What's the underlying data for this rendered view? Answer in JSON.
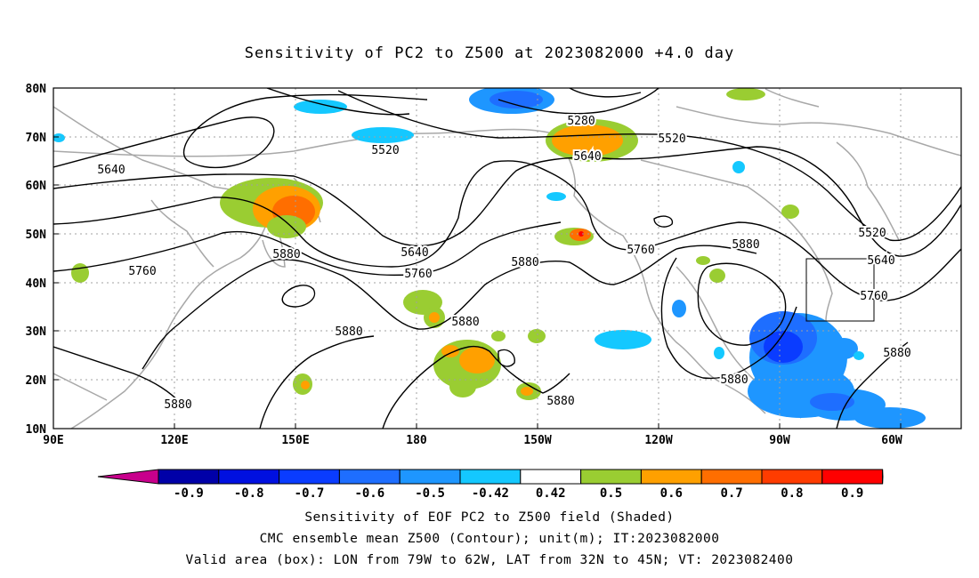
{
  "title": "Sensitivity of PC2 to Z500 at 2023082000 +4.0 day",
  "map": {
    "lat_ticks": [
      "80N",
      "70N",
      "60N",
      "50N",
      "40N",
      "30N",
      "20N",
      "10N"
    ],
    "lon_ticks": [
      "90E",
      "120E",
      "150E",
      "180",
      "150W",
      "120W",
      "90W",
      "60W"
    ],
    "contour_labels": [
      {
        "text": "5280"
      },
      {
        "text": "5520"
      },
      {
        "text": "5520"
      },
      {
        "text": "5520"
      },
      {
        "text": "5640"
      },
      {
        "text": "5640"
      },
      {
        "text": "5640"
      },
      {
        "text": "5640"
      },
      {
        "text": "5760"
      },
      {
        "text": "5760"
      },
      {
        "text": "5760"
      },
      {
        "text": "5760"
      },
      {
        "text": "5880"
      },
      {
        "text": "5880"
      },
      {
        "text": "5880"
      },
      {
        "text": "5880"
      },
      {
        "text": "5880"
      },
      {
        "text": "5880"
      },
      {
        "text": "5880"
      },
      {
        "text": "5880"
      },
      {
        "text": "5880"
      }
    ]
  },
  "colorbar": {
    "labels": [
      "-0.9",
      "-0.8",
      "-0.7",
      "-0.6",
      "-0.5",
      "-0.42",
      "0.42",
      "0.5",
      "0.6",
      "0.7",
      "0.8",
      "0.9"
    ],
    "colors": [
      "#0000a8",
      "#0010e0",
      "#0a3cff",
      "#1e6eff",
      "#1e96ff",
      "#14c8ff",
      "#ffffff",
      "#9acd32",
      "#ffa000",
      "#ff6e00",
      "#ff3c00",
      "#ff0000"
    ],
    "under_color": "#c8008c",
    "over_color": "#ff96c8"
  },
  "footer": {
    "line1": "Sensitivity of EOF PC2 to Z500 field (Shaded)",
    "line2": "CMC ensemble mean Z500 (Contour); unit(m); IT:2023082000",
    "line3": "Valid area (box): LON from 79W to 62W, LAT from 32N to 45N; VT: 2023082400"
  }
}
